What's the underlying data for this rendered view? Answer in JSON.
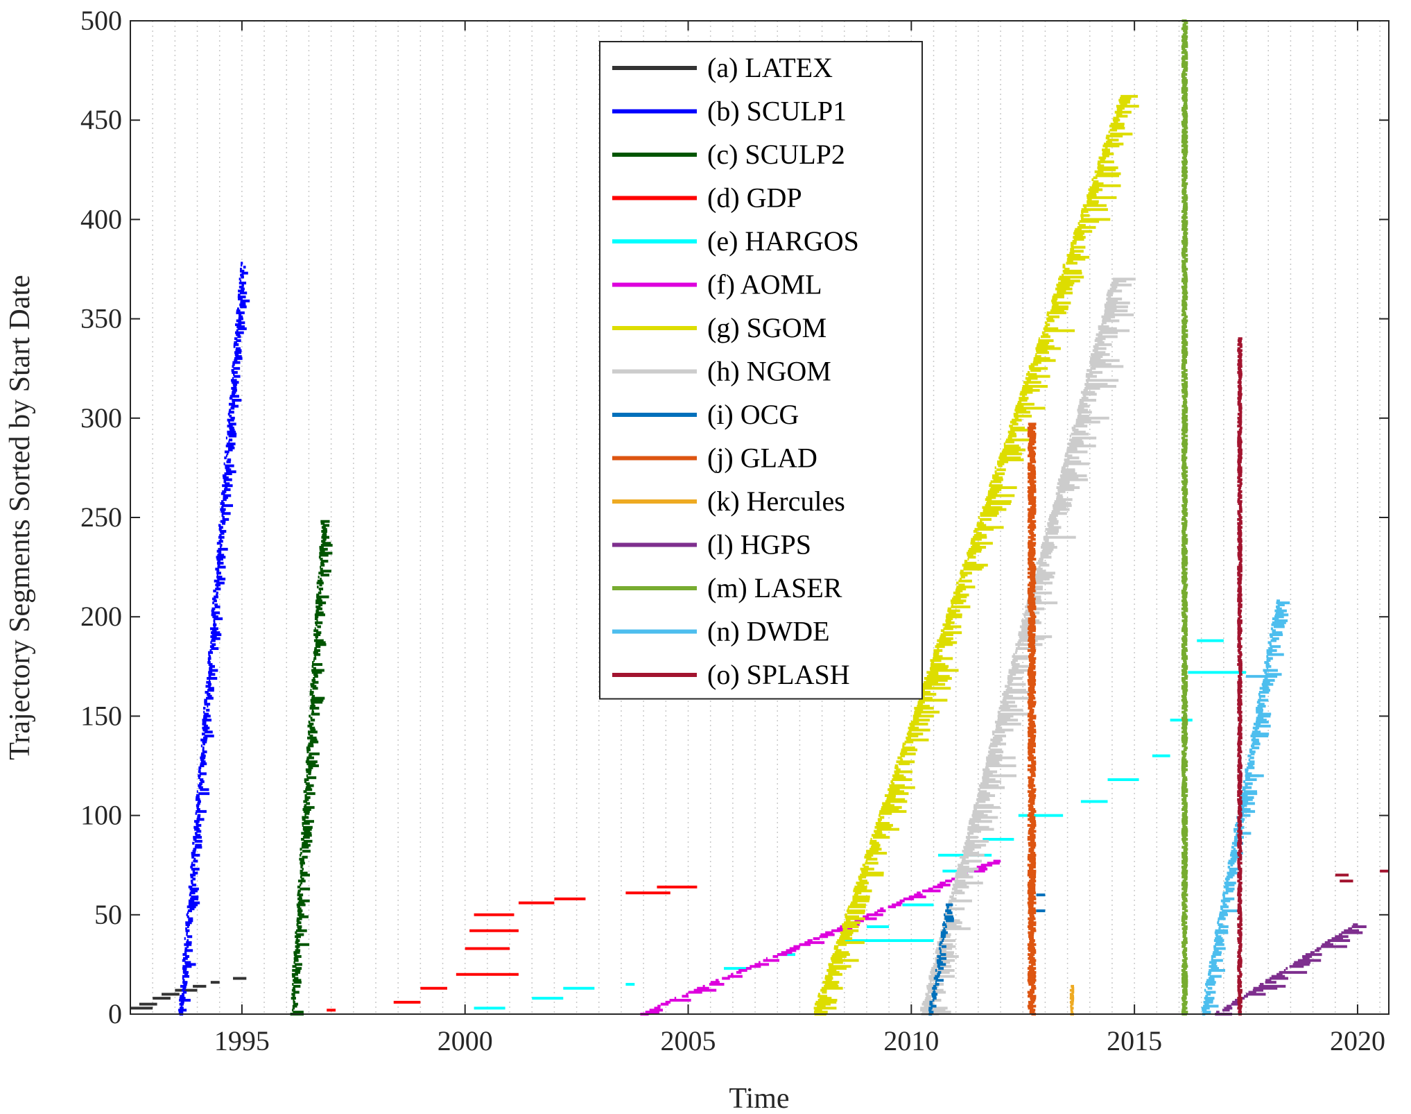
{
  "chart_data": {
    "type": "scatter",
    "title": "",
    "xlabel": "Time",
    "ylabel": "Trajectory Segments Sorted by Start Date",
    "xlim": [
      1992.5,
      2020.7
    ],
    "ylim": [
      0,
      500
    ],
    "xticks": [
      1995,
      2000,
      2005,
      2010,
      2015,
      2020
    ],
    "yticks": [
      0,
      50,
      100,
      150,
      200,
      250,
      300,
      350,
      400,
      450,
      500
    ],
    "grid": "vertical dotted lines every 6 months",
    "legend_position": "top-center",
    "series": [
      {
        "name": "(a) LATEX",
        "color": "#333333",
        "segments": [
          [
            1992.5,
            1993.0,
            3
          ],
          [
            1992.7,
            1993.1,
            5
          ],
          [
            1993.0,
            1993.4,
            8
          ],
          [
            1993.2,
            1993.6,
            10
          ],
          [
            1993.5,
            1994.0,
            12
          ],
          [
            1993.9,
            1994.2,
            14
          ],
          [
            1994.3,
            1994.5,
            16
          ],
          [
            1994.8,
            1995.1,
            18
          ]
        ]
      },
      {
        "name": "(b) SCULP1",
        "color": "#0000ff",
        "start": [
          1993.6,
          0
        ],
        "end": [
          1995.0,
          378
        ],
        "spread": 0.25
      },
      {
        "name": "(c) SCULP2",
        "color": "#005500",
        "start": [
          1996.1,
          0
        ],
        "end": [
          1996.8,
          248
        ],
        "spread": 0.3
      },
      {
        "name": "(d) GDP",
        "color": "#ff0000",
        "segments": [
          [
            1996.9,
            1997.1,
            2
          ],
          [
            1998.4,
            1999.0,
            6
          ],
          [
            1999.0,
            1999.6,
            13
          ],
          [
            1999.8,
            2001.2,
            20
          ],
          [
            2000.0,
            2001.0,
            33
          ],
          [
            2000.1,
            2001.2,
            42
          ],
          [
            2000.2,
            2001.1,
            50
          ],
          [
            2001.2,
            2002.0,
            56
          ],
          [
            2002.0,
            2002.7,
            58
          ],
          [
            2003.6,
            2004.6,
            61
          ],
          [
            2004.3,
            2005.2,
            64
          ]
        ]
      },
      {
        "name": "(e) HARGOS",
        "color": "#00ffff",
        "segments": [
          [
            2000.2,
            2000.9,
            3
          ],
          [
            2001.5,
            2002.2,
            8
          ],
          [
            2002.2,
            2002.9,
            13
          ],
          [
            2003.6,
            2003.8,
            15
          ],
          [
            2005.8,
            2006.4,
            23
          ],
          [
            2007.0,
            2007.4,
            30
          ],
          [
            2008.4,
            2010.5,
            37
          ],
          [
            2009.0,
            2009.5,
            44
          ],
          [
            2009.8,
            2010.5,
            55
          ],
          [
            2010.7,
            2011.5,
            72
          ],
          [
            2010.6,
            2011.8,
            80
          ],
          [
            2011.6,
            2012.3,
            88
          ],
          [
            2012.4,
            2013.4,
            100
          ],
          [
            2013.8,
            2014.4,
            107
          ],
          [
            2014.4,
            2015.1,
            118
          ],
          [
            2015.4,
            2015.8,
            130
          ],
          [
            2015.8,
            2016.3,
            148
          ],
          [
            2016.2,
            2017.5,
            172
          ],
          [
            2016.4,
            2017.0,
            188
          ]
        ]
      },
      {
        "name": "(f) AOML",
        "color": "#dd00dd",
        "start": [
          2003.9,
          0
        ],
        "end": [
          2011.8,
          77
        ],
        "spread": 0.5
      },
      {
        "name": "(g) SGOM",
        "color": "#dddd00",
        "start": [
          2007.8,
          0
        ],
        "end": [
          2014.7,
          462
        ],
        "spread": 0.7
      },
      {
        "name": "(h) NGOM",
        "color": "#cccccc",
        "start": [
          2010.2,
          0
        ],
        "end": [
          2014.5,
          370
        ],
        "spread": 0.8
      },
      {
        "name": "(i) OCG",
        "color": "#0070bb",
        "start": [
          2010.4,
          0
        ],
        "end": [
          2010.8,
          55
        ],
        "spread": 0.2,
        "extra": [
          [
            2012.8,
            2013.0,
            60
          ],
          [
            2012.8,
            2013.0,
            52
          ]
        ]
      },
      {
        "name": "(j) GLAD",
        "color": "#dd5511",
        "band": [
          2012.6,
          2012.8,
          0,
          297
        ]
      },
      {
        "name": "(k) Hercules",
        "color": "#eeaa22",
        "band": [
          2013.55,
          2013.65,
          0,
          14
        ]
      },
      {
        "name": "(l) HGPS",
        "color": "#7e2f8e",
        "start": [
          2016.8,
          0
        ],
        "end": [
          2019.9,
          45
        ],
        "spread": 0.8
      },
      {
        "name": "(m) LASER",
        "color": "#77ac30",
        "band": [
          2016.05,
          2016.2,
          0,
          500
        ]
      },
      {
        "name": "(n) DWDE",
        "color": "#4dbeee",
        "start": [
          2016.5,
          0
        ],
        "end": [
          2018.2,
          208
        ],
        "spread": 0.4,
        "extra": [
          [
            2017.5,
            2018.2,
            170
          ],
          [
            2017.6,
            2018.0,
            140
          ],
          [
            2017.5,
            2017.9,
            120
          ]
        ]
      },
      {
        "name": "(o) SPLASH",
        "color": "#a2142f",
        "band": [
          2017.3,
          2017.42,
          0,
          340
        ],
        "extra": [
          [
            2019.6,
            2019.9,
            67
          ],
          [
            2019.5,
            2019.8,
            70
          ],
          [
            2020.5,
            2020.7,
            72
          ]
        ]
      }
    ]
  }
}
